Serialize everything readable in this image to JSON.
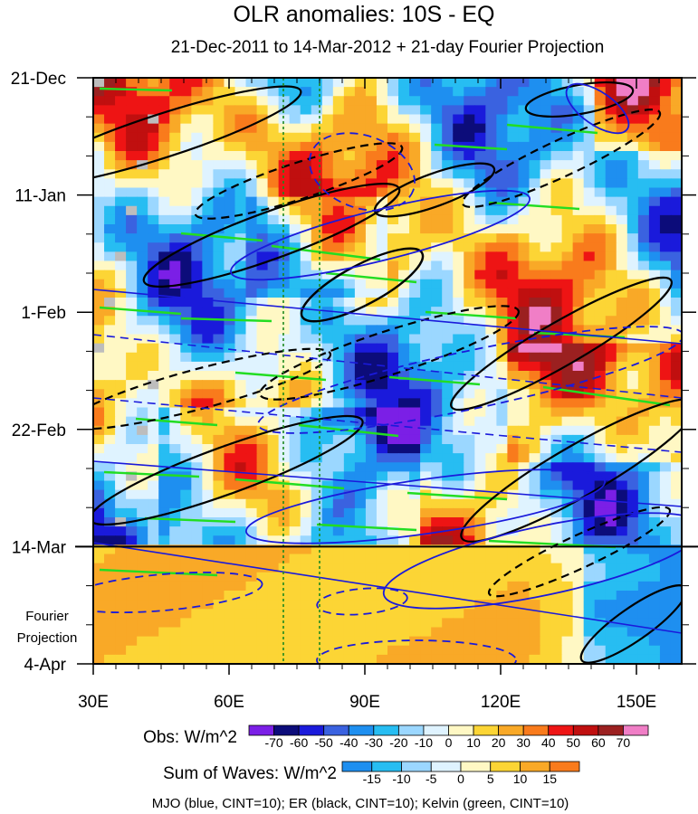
{
  "chart_data": {
    "type": "heatmap",
    "title": "OLR anomalies: 10S - EQ",
    "subtitle": "21-Dec-2011 to 14-Mar-2012 + 21-day Fourier Projection",
    "x_ticks": [
      {
        "value": 30,
        "label": "30E"
      },
      {
        "value": 60,
        "label": "60E"
      },
      {
        "value": 90,
        "label": "90E"
      },
      {
        "value": 120,
        "label": "120E"
      },
      {
        "value": 150,
        "label": "150E"
      }
    ],
    "xlim": [
      30,
      160
    ],
    "y_ticks": [
      {
        "value": 0,
        "label": "21-Dec"
      },
      {
        "value": 21,
        "label": "11-Jan"
      },
      {
        "value": 42,
        "label": "1-Feb"
      },
      {
        "value": 63,
        "label": "22-Feb"
      },
      {
        "value": 84,
        "label": "14-Mar"
      },
      {
        "value": 105,
        "label": "4-Apr"
      }
    ],
    "ylim_days": [
      0,
      105
    ],
    "projection_start_day": 84,
    "projection_label_lines": [
      "Fourier",
      "Projection"
    ],
    "reference_longitudes": [
      72,
      80
    ],
    "obs_colorbar": {
      "label": "Obs: W/m^2",
      "levels": [
        "-70",
        "-60",
        "-50",
        "-40",
        "-30",
        "-20",
        "-10",
        "0",
        "10",
        "20",
        "30",
        "40",
        "50",
        "60",
        "70"
      ],
      "colors": [
        "#7b1fe6",
        "#0c0c7a",
        "#1a1adb",
        "#3a62e0",
        "#1e8ff0",
        "#27bdf2",
        "#9bd7ff",
        "#dff3ff",
        "#fff8c4",
        "#fcd535",
        "#f9a927",
        "#f97b1c",
        "#ee1414",
        "#c00f0f",
        "#9b2020",
        "#f07ec6"
      ]
    },
    "waves_colorbar": {
      "label": "Sum of Waves: W/m^2",
      "levels": [
        "-15",
        "-10",
        "-5",
        "0",
        "5",
        "10",
        "15"
      ],
      "colors": [
        "#1e8ff0",
        "#27bdf2",
        "#9bd7ff",
        "#dff3ff",
        "#fff8c4",
        "#fcd535",
        "#f9a927",
        "#f97b1c"
      ]
    },
    "footer_note": "MJO (blue, CINT=10); ER (black, CINT=10); Kelvin (green, CINT=10)",
    "series": [
      {
        "name": "MJO",
        "color": "#1a1adb",
        "cint": 10
      },
      {
        "name": "ER",
        "color": "#000000",
        "cint": 10
      },
      {
        "name": "Kelvin",
        "color": "#22dd22",
        "cint": 10
      }
    ]
  }
}
